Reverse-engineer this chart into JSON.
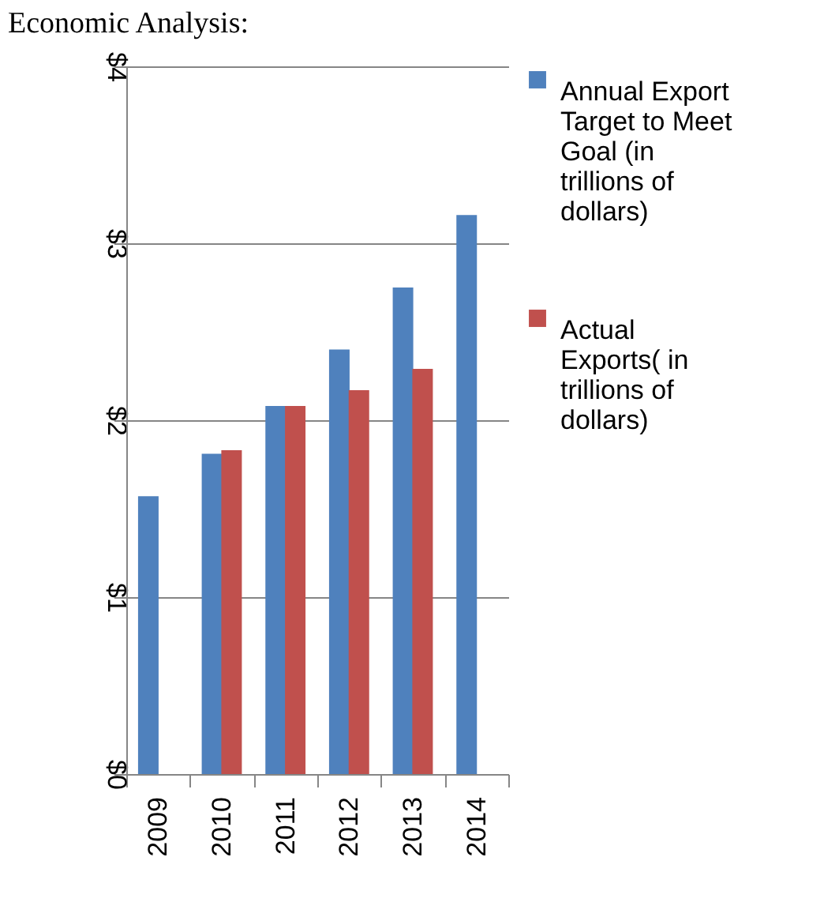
{
  "chart_data": {
    "type": "bar",
    "title": "Economic Analysis:",
    "categories": [
      "2009",
      "2010",
      "2011",
      "2012",
      "2013",
      "2014"
    ],
    "series": [
      {
        "name": "Annual Export Target to Meet Goal (in trillions of dollars)",
        "color": "#4f81bd",
        "values": [
          1.57,
          1.81,
          2.08,
          2.4,
          2.75,
          3.16
        ]
      },
      {
        "name": "Actual Exports( in trillions of dollars)",
        "color": "#c0504d",
        "values": [
          null,
          1.83,
          2.08,
          2.17,
          2.29,
          null
        ]
      }
    ],
    "ylim": [
      0,
      4
    ],
    "yticks": [
      {
        "value": 0,
        "label": "$0"
      },
      {
        "value": 1,
        "label": "$1"
      },
      {
        "value": 2,
        "label": "$2"
      },
      {
        "value": 3,
        "label": "$3"
      },
      {
        "value": 4,
        "label": "$4"
      }
    ],
    "grid": "y",
    "legend": "right"
  }
}
